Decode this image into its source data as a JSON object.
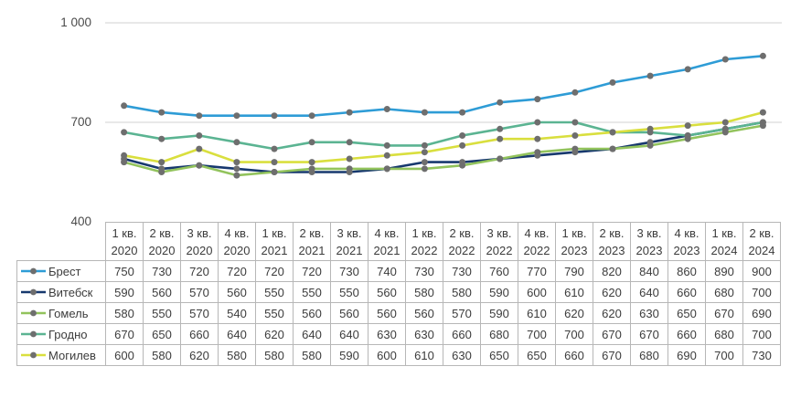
{
  "chart": {
    "yticks": [
      {
        "value": 1000,
        "label": "1 000"
      },
      {
        "value": 700,
        "label": "700"
      },
      {
        "value": 400,
        "label": "400"
      }
    ],
    "gridline_color": "#d9d9d9",
    "marker_color": "#6e6e6e",
    "table_border_color": "#b7b7b7"
  },
  "chart_data": {
    "type": "line",
    "title": "",
    "xlabel": "",
    "ylabel": "",
    "ylim": [
      400,
      1000
    ],
    "grid": "horizontal",
    "legend_position": "table-left-column",
    "categories": [
      {
        "line1": "1 кв.",
        "line2": "2020"
      },
      {
        "line1": "2 кв.",
        "line2": "2020"
      },
      {
        "line1": "3 кв.",
        "line2": "2020"
      },
      {
        "line1": "4 кв.",
        "line2": "2020"
      },
      {
        "line1": "1 кв.",
        "line2": "2021"
      },
      {
        "line1": "2 кв.",
        "line2": "2021"
      },
      {
        "line1": "3 кв.",
        "line2": "2021"
      },
      {
        "line1": "4 кв.",
        "line2": "2021"
      },
      {
        "line1": "1 кв.",
        "line2": "2022"
      },
      {
        "line1": "2 кв.",
        "line2": "2022"
      },
      {
        "line1": "3 кв.",
        "line2": "2022"
      },
      {
        "line1": "4 кв.",
        "line2": "2022"
      },
      {
        "line1": "1 кв.",
        "line2": "2023"
      },
      {
        "line1": "2 кв.",
        "line2": "2023"
      },
      {
        "line1": "3 кв.",
        "line2": "2023"
      },
      {
        "line1": "4 кв.",
        "line2": "2023"
      },
      {
        "line1": "1 кв.",
        "line2": "2024"
      },
      {
        "line1": "2 кв.",
        "line2": "2024"
      }
    ],
    "series": [
      {
        "name": "Брест",
        "color": "#2E9CD6",
        "values": [
          750,
          730,
          720,
          720,
          720,
          720,
          730,
          740,
          730,
          730,
          760,
          770,
          790,
          820,
          840,
          860,
          890,
          900
        ]
      },
      {
        "name": "Витебск",
        "color": "#17386E",
        "values": [
          590,
          560,
          570,
          560,
          550,
          550,
          550,
          560,
          580,
          580,
          590,
          600,
          610,
          620,
          640,
          660,
          680,
          700
        ]
      },
      {
        "name": "Гомель",
        "color": "#92C35C",
        "values": [
          580,
          550,
          570,
          540,
          550,
          560,
          560,
          560,
          560,
          570,
          590,
          610,
          620,
          620,
          630,
          650,
          670,
          690
        ]
      },
      {
        "name": "Гродно",
        "color": "#5BB492",
        "values": [
          670,
          650,
          660,
          640,
          620,
          640,
          640,
          630,
          630,
          660,
          680,
          700,
          700,
          670,
          670,
          660,
          680,
          700
        ]
      },
      {
        "name": "Могилев",
        "color": "#D9DF3E",
        "values": [
          600,
          580,
          620,
          580,
          580,
          580,
          590,
          600,
          610,
          630,
          650,
          650,
          660,
          670,
          680,
          690,
          700,
          730
        ]
      }
    ]
  }
}
